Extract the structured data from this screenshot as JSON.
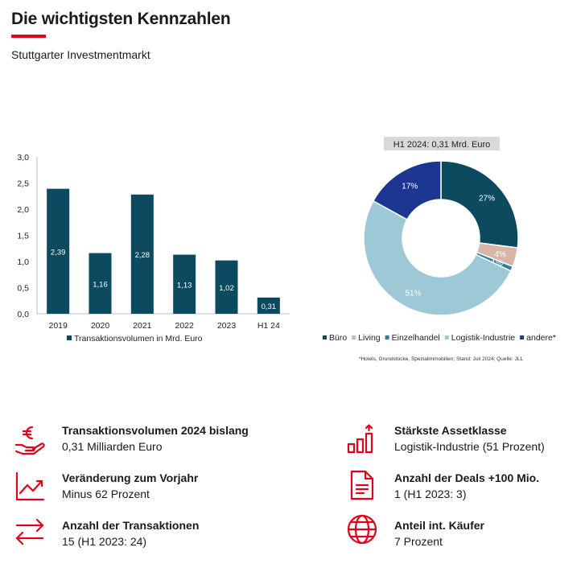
{
  "header": {
    "title": "Die wichtigsten Kennzahlen",
    "subtitle": "Stuttgarter Investmentmarkt",
    "accent_color": "#e2001a"
  },
  "chart_data": [
    {
      "type": "bar",
      "categories": [
        "2019",
        "2020",
        "2021",
        "2022",
        "2023",
        "H1 24"
      ],
      "values": [
        2.39,
        1.16,
        2.28,
        1.13,
        1.02,
        0.31
      ],
      "value_labels": [
        "2,39",
        "1,16",
        "2,28",
        "1,13",
        "1,02",
        "0,31"
      ],
      "y_ticks": [
        "0,0",
        "0,5",
        "1,0",
        "1,5",
        "2,0",
        "2,5",
        "3,0"
      ],
      "ylim": [
        0,
        3
      ],
      "series_name": "Transaktionsvolumen in Mrd. Euro",
      "color": "#0c4a5f",
      "legend": "bottom",
      "grid": false
    },
    {
      "type": "pie",
      "title": "H1 2024: 0,31 Mrd. Euro",
      "donut": true,
      "slices": [
        {
          "name": "Büro",
          "value": 27,
          "label": "27%",
          "color": "#0c4a5f"
        },
        {
          "name": "Living",
          "value": 4,
          "label": "4%",
          "color": "#d8b5a6"
        },
        {
          "name": "Einzelhandel",
          "value": 1,
          "label": "1%",
          "color": "#2a7fa0"
        },
        {
          "name": "Logistik-Industrie",
          "value": 51,
          "label": "51%",
          "color": "#9dc9d6"
        },
        {
          "name": "andere*",
          "value": 17,
          "label": "17%",
          "color": "#1d3691"
        }
      ],
      "legend": "bottom",
      "footnote": "*Hotels, Grundstücke, Spezialimmobilien; Stand: Juli 2024; Quelle: JLL"
    }
  ],
  "kpis": [
    {
      "label": "Transaktionsvolumen 2024 bislang",
      "value": "0,31 Milliarden Euro",
      "icon": "euro-hand-icon"
    },
    {
      "label": "Veränderung zum Vorjahr",
      "value": "Minus 62 Prozent",
      "icon": "line-chart-icon"
    },
    {
      "label": "Anzahl der Transaktionen",
      "value": "15 (H1 2023: 24)",
      "icon": "swap-arrows-icon"
    },
    {
      "label": "Stärkste Assetklasse",
      "value": "Logistik-Industrie (51 Prozent)",
      "icon": "bar-growth-icon"
    },
    {
      "label": "Anzahl der Deals +100 Mio.",
      "value": "1 (H1 2023: 3)",
      "icon": "document-icon"
    },
    {
      "label": "Anteil int. Käufer",
      "value": "7 Prozent",
      "icon": "globe-icon"
    }
  ]
}
